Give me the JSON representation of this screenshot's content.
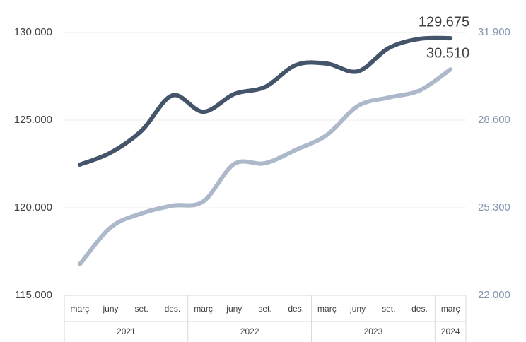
{
  "chart_data": {
    "type": "line",
    "categories": [
      "març",
      "juny",
      "set.",
      "des.",
      "març",
      "juny",
      "set.",
      "des.",
      "març",
      "juny",
      "set.",
      "des.",
      "març"
    ],
    "category_years": [
      "2021",
      null,
      null,
      null,
      "2022",
      null,
      null,
      null,
      "2023",
      null,
      null,
      null,
      "2024"
    ],
    "series": [
      {
        "color": "#44546a",
        "axis": "y",
        "values": [
          122460,
          123145,
          124395,
          126410,
          125480,
          126490,
          126895,
          128145,
          128225,
          127780,
          129110,
          129640,
          129675
        ],
        "value_labels": [
          null,
          null,
          null,
          null,
          null,
          null,
          null,
          null,
          null,
          null,
          null,
          null,
          "129.675"
        ]
      },
      {
        "color": "#adb9ca",
        "axis": "y2",
        "values": [
          23171,
          24555,
          25087,
          25380,
          25540,
          26950,
          26977,
          27482,
          28041,
          29132,
          29452,
          29718,
          30510
        ],
        "value_labels": [
          null,
          null,
          null,
          null,
          null,
          null,
          null,
          null,
          null,
          null,
          null,
          null,
          "30.510"
        ]
      }
    ],
    "ylim": [
      115000,
      130000
    ],
    "yticks": [
      {
        "value": 115000,
        "label": "115.000"
      },
      {
        "value": 120000,
        "label": "120.000"
      },
      {
        "value": 125000,
        "label": "125.000"
      },
      {
        "value": 130000,
        "label": "130.000"
      }
    ],
    "y2lim": [
      22000,
      31900
    ],
    "y2ticks": [
      {
        "value": 22000,
        "label": "22.000"
      },
      {
        "value": 25300,
        "label": "25.300"
      },
      {
        "value": 28600,
        "label": "28.600"
      },
      {
        "value": 31900,
        "label": "31.900"
      }
    ],
    "y2_color": "#8497b0",
    "grid": true
  }
}
